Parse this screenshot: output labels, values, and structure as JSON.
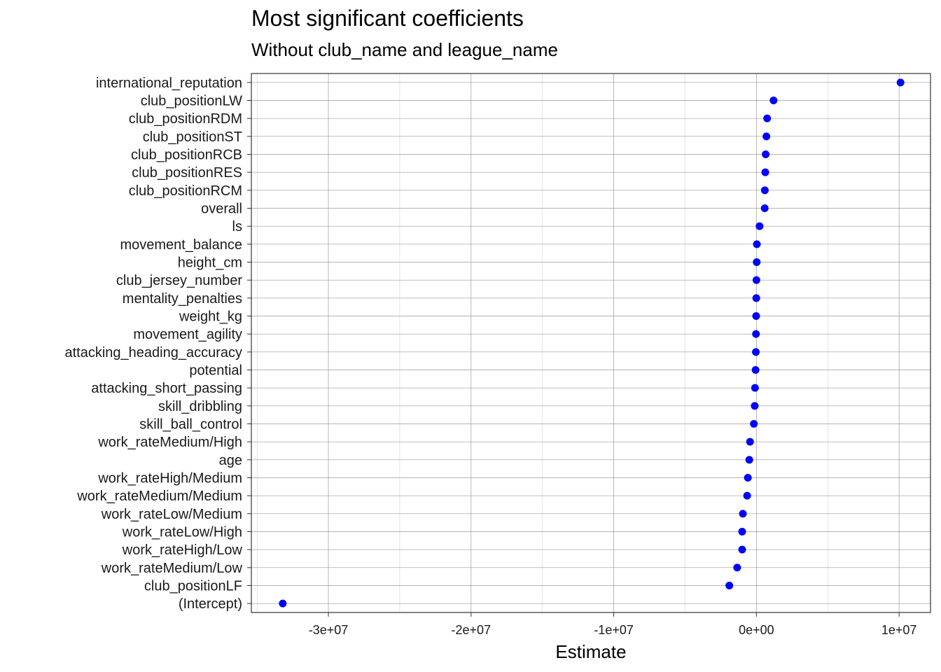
{
  "chart_data": {
    "type": "scatter",
    "title": "Most significant coefficients",
    "subtitle": "Without club_name and league_name",
    "xlabel": "Estimate",
    "ylabel": "",
    "xlim": [
      -35400000,
      12200000
    ],
    "xticks": [
      -30000000,
      -20000000,
      -10000000,
      0,
      10000000
    ],
    "xtick_labels": [
      "-3e+07",
      "-2e+07",
      "-1e+07",
      "0e+00",
      "1e+07"
    ],
    "grid": true,
    "point_color": "#0000ff",
    "categories": [
      "international_reputation",
      "club_positionLW",
      "club_positionRDM",
      "club_positionST",
      "club_positionRCB",
      "club_positionRES",
      "club_positionRCM",
      "overall",
      "ls",
      "movement_balance",
      "height_cm",
      "club_jersey_number",
      "mentality_penalties",
      "weight_kg",
      "movement_agility",
      "attacking_heading_accuracy",
      "potential",
      "attacking_short_passing",
      "skill_dribbling",
      "skill_ball_control",
      "work_rateMedium/High",
      "age",
      "work_rateHigh/Medium",
      "work_rateMedium/Medium",
      "work_rateLow/Medium",
      "work_rateLow/High",
      "work_rateHigh/Low",
      "work_rateMedium/Low",
      "club_positionLF",
      "(Intercept)"
    ],
    "values": [
      10100000,
      1200000,
      750000,
      700000,
      650000,
      620000,
      590000,
      580000,
      220000,
      30000,
      20000,
      0,
      -10000,
      -20000,
      -30000,
      -40000,
      -60000,
      -100000,
      -120000,
      -180000,
      -450000,
      -500000,
      -600000,
      -650000,
      -950000,
      -1000000,
      -1000000,
      -1350000,
      -1900000,
      -33200000
    ]
  }
}
